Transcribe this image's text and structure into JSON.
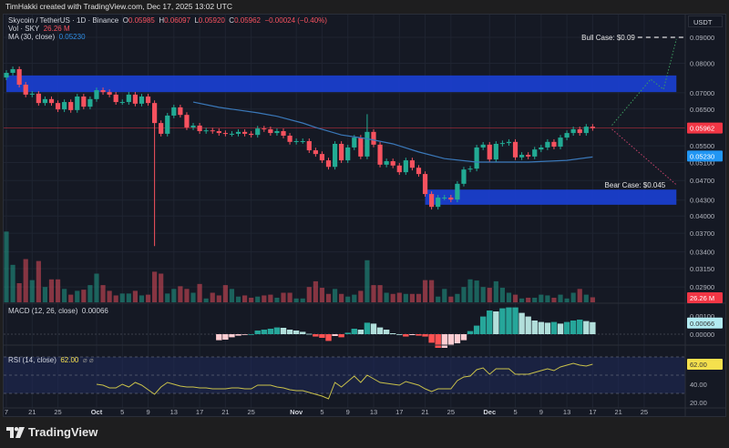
{
  "topbar": {
    "text": "TimHakki created with TradingView.com, Dec 17, 2025 13:02 UTC"
  },
  "legend": {
    "symbol": "Skycoin / TetherUS · 1D · Binance",
    "o_label": "O",
    "o": "0.05985",
    "h_label": "H",
    "h": "0.06097",
    "l_label": "L",
    "l": "0.05920",
    "c_label": "C",
    "c": "0.05962",
    "change": "−0.00024 (−0.40%)",
    "vol_label": "Vol · SKY",
    "vol_value": "26.26 M",
    "ma_label": "MA (30, close)",
    "ma_value": "0.05230",
    "macd_label": "MACD (12, 26, close)",
    "macd_value": "0.00066",
    "rsi_label": "RSI (14, close)",
    "rsi_value": "62.00",
    "rsi_extra": "⌀ ⌀"
  },
  "currency": "USDT",
  "footer": {
    "brand": "TradingView"
  },
  "colors": {
    "up": "#22ab94",
    "down": "#f7525f",
    "zone": "#1a3fd1",
    "ma": "#3a78b9",
    "rsi": "#c9c14a",
    "bull": "#3d9a5f",
    "bear": "#c5426a",
    "badge_price": "#f23645",
    "badge_ma": "#2196f3",
    "badge_macd": "#b2ebf2",
    "badge_rsi": "#f5e04d"
  },
  "chart_data": {
    "type": "candlestick",
    "x_range": [
      "2025-09-17",
      "2025-12-30"
    ],
    "y_scale": "log",
    "grid": true,
    "close": [
      0.0766,
      0.0779,
      0.0726,
      0.0694,
      0.0697,
      0.0668,
      0.068,
      0.0668,
      0.0649,
      0.0671,
      0.0647,
      0.0688,
      0.0657,
      0.068,
      0.0708,
      0.0702,
      0.0694,
      0.0671,
      0.0671,
      0.0694,
      0.0666,
      0.0688,
      0.0668,
      0.061,
      0.0581,
      0.0631,
      0.0655,
      0.0633,
      0.0598,
      0.0603,
      0.0588,
      0.059,
      0.0588,
      0.0583,
      0.0581,
      0.0581,
      0.0586,
      0.0581,
      0.0578,
      0.0595,
      0.0593,
      0.0583,
      0.0588,
      0.0576,
      0.056,
      0.0562,
      0.0562,
      0.0539,
      0.053,
      0.0515,
      0.05,
      0.0555,
      0.0515,
      0.0546,
      0.0571,
      0.0524,
      0.0586,
      0.0553,
      0.0505,
      0.0513,
      0.0503,
      0.0488,
      0.0515,
      0.0498,
      0.0484,
      0.0442,
      0.0417,
      0.0435,
      0.0435,
      0.0431,
      0.0463,
      0.0494,
      0.0496,
      0.0546,
      0.0553,
      0.0517,
      0.0555,
      0.0557,
      0.056,
      0.0522,
      0.0528,
      0.0524,
      0.0541,
      0.0546,
      0.056,
      0.0548,
      0.0571,
      0.0583,
      0.0593,
      0.0583,
      0.06,
      0.05962
    ],
    "first_open": 0.075,
    "wick_extremes": [
      {
        "date": "2025-10-10",
        "low": 0.0349
      },
      {
        "date": "2025-11-12",
        "high": 0.0635
      }
    ],
    "volume_m": [
      370,
      196,
      100,
      226,
      116,
      216,
      80,
      120,
      120,
      70,
      40,
      60,
      66,
      90,
      150,
      90,
      60,
      36,
      46,
      46,
      60,
      36,
      40,
      160,
      150,
      46,
      70,
      84,
      70,
      50,
      96,
      20,
      50,
      36,
      90,
      70,
      30,
      36,
      24,
      30,
      36,
      40,
      24,
      50,
      50,
      20,
      20,
      80,
      110,
      76,
      44,
      70,
      44,
      30,
      40,
      60,
      220,
      90,
      90,
      50,
      44,
      50,
      44,
      44,
      44,
      116,
      116,
      30,
      70,
      30,
      44,
      80,
      120,
      114,
      80,
      76,
      110,
      76,
      50,
      40,
      20,
      24,
      24,
      40,
      36,
      24,
      40,
      20,
      50,
      70,
      40,
      26.26
    ],
    "ma30": [
      {
        "date": "2025-10-16",
        "value": 0.0671
      },
      {
        "date": "2025-10-20",
        "value": 0.0655
      },
      {
        "date": "2025-10-26",
        "value": 0.0639
      },
      {
        "date": "2025-10-29",
        "value": 0.0629
      },
      {
        "date": "2025-11-02",
        "value": 0.061
      },
      {
        "date": "2025-11-04",
        "value": 0.0598
      },
      {
        "date": "2025-11-08",
        "value": 0.0578
      },
      {
        "date": "2025-11-12",
        "value": 0.0568
      },
      {
        "date": "2025-11-16",
        "value": 0.0555
      },
      {
        "date": "2025-11-20",
        "value": 0.0535
      },
      {
        "date": "2025-11-24",
        "value": 0.0519
      },
      {
        "date": "2025-11-29",
        "value": 0.0511
      },
      {
        "date": "2025-12-07",
        "value": 0.0511
      },
      {
        "date": "2025-12-13",
        "value": 0.0515
      },
      {
        "date": "2025-12-17",
        "value": 0.0523
      }
    ],
    "macd_hist": [
      null,
      null,
      null,
      null,
      null,
      null,
      null,
      null,
      null,
      null,
      null,
      null,
      null,
      null,
      null,
      null,
      null,
      null,
      null,
      null,
      null,
      null,
      null,
      null,
      null,
      null,
      null,
      null,
      null,
      null,
      null,
      null,
      null,
      -0.00033,
      -0.0003,
      -0.00017,
      -8e-05,
      -3e-05,
      0.0,
      0.0002,
      0.00025,
      0.0003,
      0.00037,
      0.00035,
      0.00025,
      0.0002,
      0.00013,
      2e-05,
      -0.00013,
      -0.0002,
      -0.00037,
      -0.0001,
      -0.00017,
      8e-05,
      0.0003,
      0.00025,
      0.00063,
      0.00058,
      0.00037,
      0.00025,
      5e-05,
      0.0,
      -0.00013,
      -5e-05,
      -8e-05,
      -0.00013,
      -0.00047,
      -0.00075,
      -0.00075,
      -0.00063,
      -0.0005,
      -0.00033,
      0.00017,
      0.00047,
      0.00097,
      0.0013,
      0.00125,
      0.00142,
      0.00147,
      0.00147,
      0.00117,
      0.00097,
      0.00075,
      0.00067,
      0.00063,
      0.00067,
      0.00058,
      0.00067,
      0.00075,
      0.0008,
      0.00072,
      0.00066
    ],
    "rsi": [
      null,
      null,
      null,
      null,
      null,
      null,
      null,
      null,
      null,
      null,
      null,
      null,
      null,
      null,
      40,
      39,
      36,
      36,
      40,
      37,
      42,
      39,
      34,
      29,
      37,
      42,
      40,
      38,
      37,
      37,
      36,
      36,
      35,
      35,
      35,
      36,
      36,
      35,
      35,
      39,
      39,
      39,
      37,
      36,
      34,
      33,
      33,
      31,
      29,
      27,
      24,
      42,
      37,
      43,
      49,
      42,
      50,
      46,
      42,
      41,
      40,
      39,
      43,
      41,
      39,
      35,
      32,
      35,
      35,
      35,
      44,
      48,
      49,
      56,
      58,
      51,
      57,
      57,
      57,
      51,
      51,
      51,
      53,
      55,
      57,
      55,
      59,
      61,
      63,
      61,
      60,
      62
    ],
    "rsi_levels": [
      70,
      50,
      30
    ],
    "zones": [
      {
        "from": "2025-09-17",
        "to": "2025-12-30",
        "top": 0.0757,
        "bottom": 0.0702
      },
      {
        "from": "2025-11-21",
        "to": "2025-12-30",
        "top": 0.0451,
        "bottom": 0.0421
      }
    ],
    "bull_case": {
      "label": "Bull Case: $0.09",
      "level": 0.09,
      "level_from": "2025-12-24",
      "path": [
        {
          "date": "2025-12-20",
          "price": 0.0604
        },
        {
          "date": "2025-12-26",
          "price": 0.0744
        },
        {
          "date": "2025-12-28",
          "price": 0.0711
        },
        {
          "date": "2025-12-30",
          "price": 0.0893
        }
      ]
    },
    "bear_case": {
      "label": "Bear Case: $0.045",
      "path": [
        {
          "date": "2025-12-20",
          "price": 0.0593
        },
        {
          "date": "2025-12-30",
          "price": 0.0461
        }
      ]
    },
    "price_ticks": [
      "0.09000",
      "0.08000",
      "0.07000",
      "0.06500",
      "0.05500",
      "0.05100",
      "0.04700",
      "0.04300",
      "0.04000",
      "0.03700",
      "0.03400",
      "0.03150",
      "0.02900"
    ],
    "macd_ticks": [
      "0.00100",
      "0.00000"
    ],
    "rsi_ticks": [
      "40.00",
      "20.00"
    ],
    "last_price": "0.05962",
    "last_ma": "0.05230",
    "last_volume": "26.26 M",
    "last_macd": "0.00066",
    "last_rsi": "62.00",
    "date_ticks": [
      {
        "label": "7",
        "date": "2025-09-17"
      },
      {
        "label": "21",
        "date": "2025-09-21"
      },
      {
        "label": "25",
        "date": "2025-09-25"
      },
      {
        "label": "Oct",
        "date": "2025-10-01",
        "month": true
      },
      {
        "label": "5",
        "date": "2025-10-05"
      },
      {
        "label": "9",
        "date": "2025-10-09"
      },
      {
        "label": "13",
        "date": "2025-10-13"
      },
      {
        "label": "17",
        "date": "2025-10-17"
      },
      {
        "label": "21",
        "date": "2025-10-21"
      },
      {
        "label": "25",
        "date": "2025-10-25"
      },
      {
        "label": "Nov",
        "date": "2025-11-01",
        "month": true
      },
      {
        "label": "5",
        "date": "2025-11-05"
      },
      {
        "label": "9",
        "date": "2025-11-09"
      },
      {
        "label": "13",
        "date": "2025-11-13"
      },
      {
        "label": "17",
        "date": "2025-11-17"
      },
      {
        "label": "21",
        "date": "2025-11-21"
      },
      {
        "label": "25",
        "date": "2025-11-25"
      },
      {
        "label": "Dec",
        "date": "2025-12-01",
        "month": true
      },
      {
        "label": "5",
        "date": "2025-12-05"
      },
      {
        "label": "9",
        "date": "2025-12-09"
      },
      {
        "label": "13",
        "date": "2025-12-13"
      },
      {
        "label": "17",
        "date": "2025-12-17"
      },
      {
        "label": "21",
        "date": "2025-12-21"
      },
      {
        "label": "25",
        "date": "2025-12-25"
      }
    ]
  }
}
